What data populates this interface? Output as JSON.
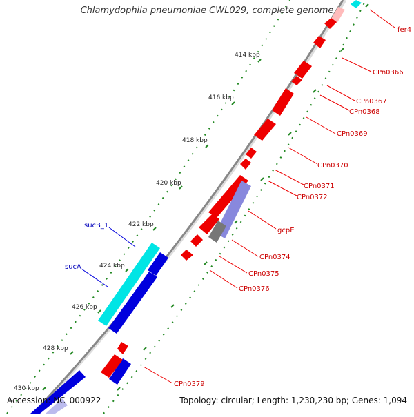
{
  "header": {
    "title": "Chlamydophila pneumoniae CWL029, complete genome"
  },
  "footer": {
    "accession": "Accession: NC_000922",
    "summary": "Topology: circular; Length: 1,230,230 bp; Genes: 1,094"
  },
  "colors": {
    "backbone": "#888888",
    "tick": "#228822",
    "forward_gene": "#0000dd",
    "forward_label": "#0000bb",
    "reverse_gene": "#ee0000",
    "reverse_label": "#cc0000",
    "highlight_forward": "#00e5e5",
    "highlight_reverse": "#8888dd",
    "highlight_gray": "#777777",
    "faded_reverse": "#ffbbbb"
  },
  "ticks": [
    {
      "label": "414 kbp"
    },
    {
      "label": "416 kbp"
    },
    {
      "label": "418 kbp"
    },
    {
      "label": "420 kbp"
    },
    {
      "label": "422 kbp"
    },
    {
      "label": "424 kbp"
    },
    {
      "label": "426 kbp"
    },
    {
      "label": "428 kbp"
    },
    {
      "label": "430 kbp"
    }
  ],
  "forward_labels": [
    {
      "name": "sucB_1"
    },
    {
      "name": "sucA"
    }
  ],
  "reverse_labels": [
    {
      "name": "fer4"
    },
    {
      "name": "CPn0366"
    },
    {
      "name": "CPn0367"
    },
    {
      "name": "CPn0368"
    },
    {
      "name": "CPn0369"
    },
    {
      "name": "CPn0370"
    },
    {
      "name": "CPn0371"
    },
    {
      "name": "CPn0372"
    },
    {
      "name": "gcpE"
    },
    {
      "name": "CPn0374"
    },
    {
      "name": "CPn0375"
    },
    {
      "name": "CPn0376"
    },
    {
      "name": "CPn0379"
    }
  ]
}
